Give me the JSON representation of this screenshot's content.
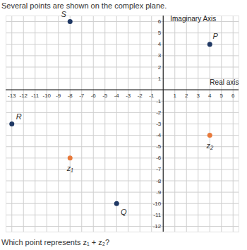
{
  "chart_data": {
    "type": "scatter",
    "title": "Several points are shown on the complex plane.",
    "caption": "Which point represents z₁ + z₂?",
    "x_label": "Real axis",
    "y_label": "Imaginary Axis",
    "labels": [
      "S",
      "P",
      "R",
      "z₁",
      "z₂",
      "Q"
    ],
    "x": [
      -8,
      4,
      -13,
      -8,
      4,
      -4
    ],
    "y": [
      6,
      4,
      -3,
      -6,
      -4,
      -10
    ],
    "colors": [
      "#1f3864",
      "#1f3864",
      "#1f3864",
      "#e8793a",
      "#e8793a",
      "#1f3864"
    ],
    "xlim": [
      -13.5,
      6.5
    ],
    "ylim": [
      -12.5,
      6.5
    ],
    "xticks": [
      -13,
      -12,
      -11,
      -10,
      -9,
      -8,
      -7,
      -6,
      -5,
      -4,
      -3,
      -2,
      -1,
      1,
      2,
      3,
      4,
      5,
      6
    ],
    "yticks": [
      -12,
      -11,
      -10,
      -9,
      -8,
      -7,
      -6,
      -5,
      -4,
      -3,
      -2,
      -1,
      1,
      2,
      3,
      4,
      5,
      6
    ],
    "grid": true
  }
}
